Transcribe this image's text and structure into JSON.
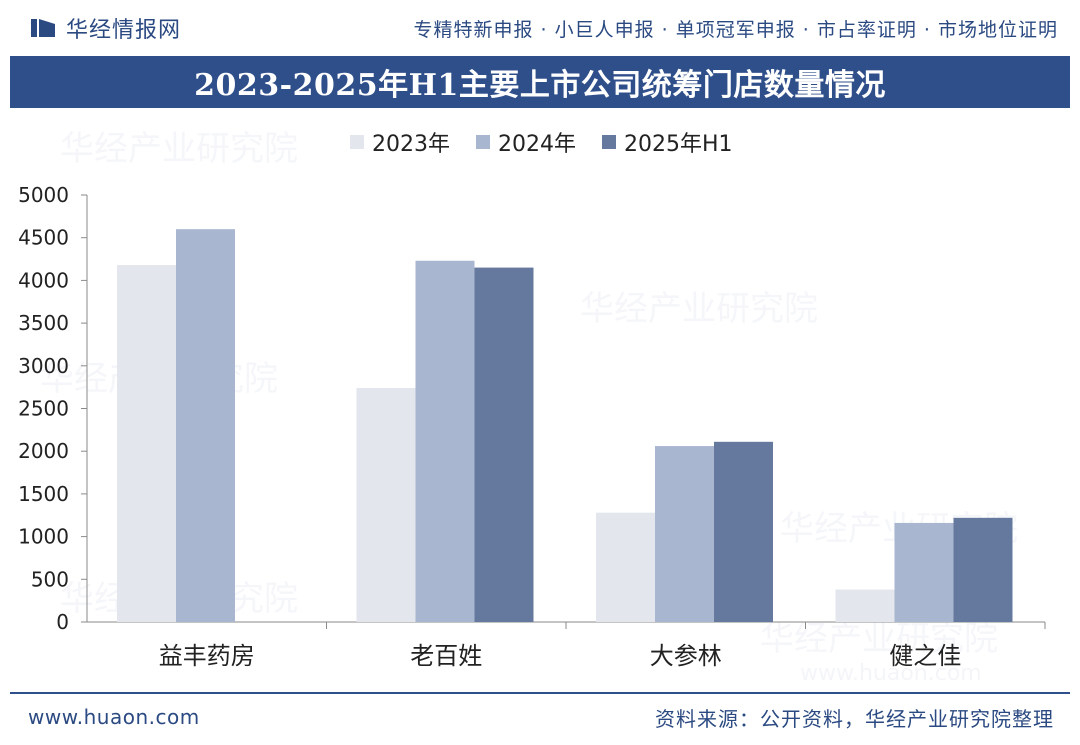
{
  "header": {
    "brand_name": "华经情报网",
    "services": "专精特新申报 · 小巨人申报 · 单项冠军申报 · 市占率证明 · 市场地位证明"
  },
  "colors": {
    "brand": "#2f4f8b",
    "series_2023": "#e3e6ec",
    "series_2024": "#a9b6d0",
    "series_2025h1": "#65799e"
  },
  "chart_data": {
    "type": "bar",
    "title": "2023-2025年H1主要上市公司统筹门店数量情况",
    "categories": [
      "益丰药房",
      "老百姓",
      "大参林",
      "健之佳"
    ],
    "series": [
      {
        "name": "2023年",
        "values": [
          4180,
          2740,
          1280,
          380
        ]
      },
      {
        "name": "2024年",
        "values": [
          4600,
          4230,
          2060,
          1160
        ]
      },
      {
        "name": "2025年H1",
        "values": [
          null,
          4150,
          2110,
          1220
        ]
      }
    ],
    "ylim": [
      0,
      5000
    ],
    "yticks": [
      "0",
      "500",
      "1000",
      "1500",
      "2000",
      "2500",
      "3000",
      "3500",
      "4000",
      "4500",
      "5000"
    ],
    "grid": false,
    "legend": "top"
  },
  "watermark": {
    "text": "华经产业研究院",
    "url": "www.huaon.com"
  },
  "footer": {
    "url": "www.huaon.com",
    "source": "资料来源：公开资料，华经产业研究院整理"
  }
}
